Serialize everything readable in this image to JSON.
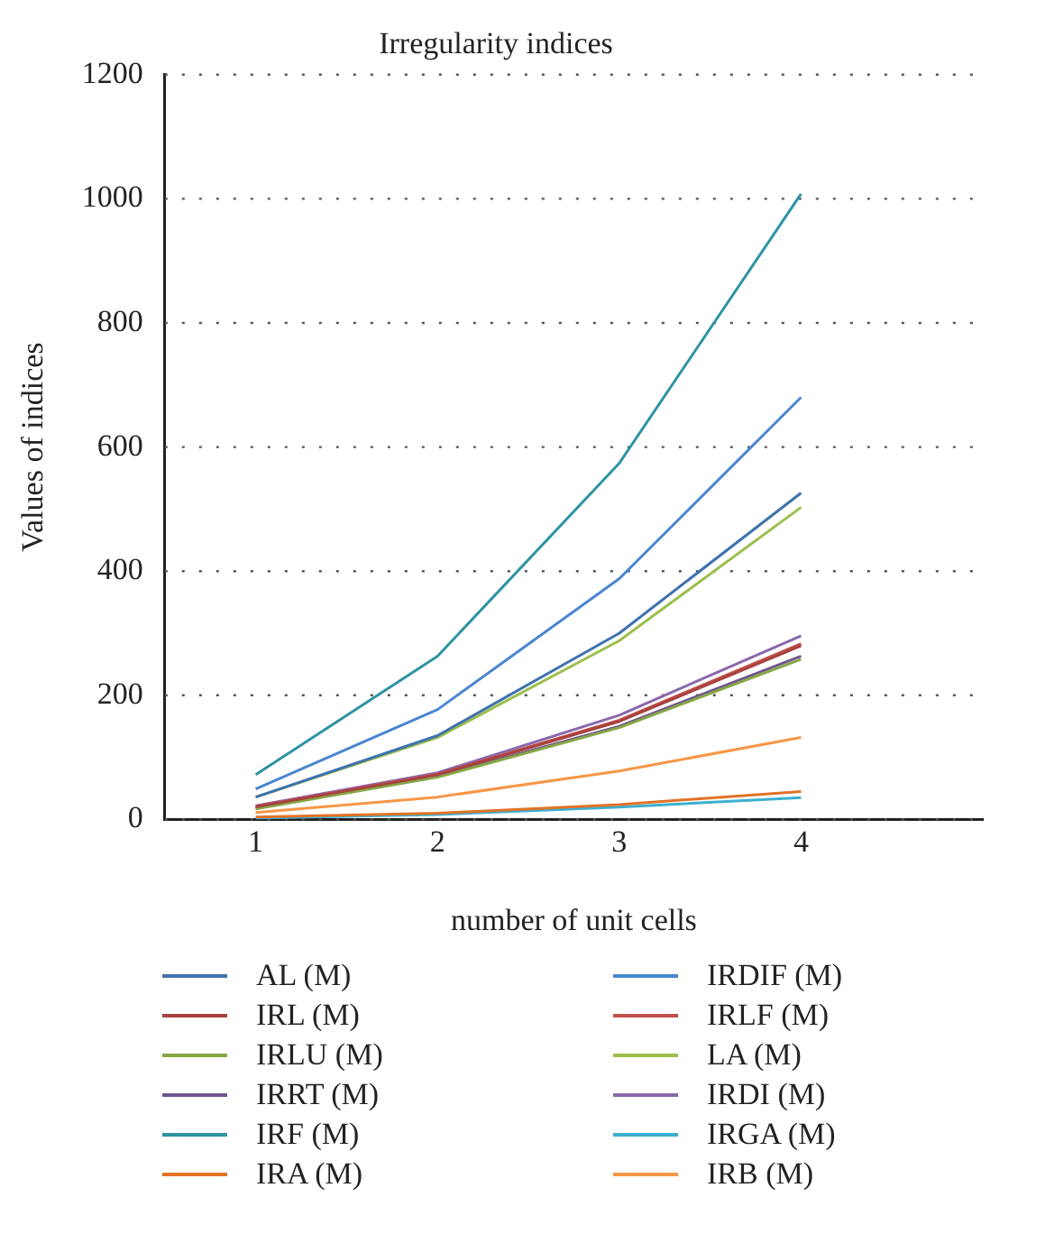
{
  "chart_data": {
    "type": "line",
    "title": "Irregularity indices",
    "xlabel": "number of unit cells",
    "ylabel": "Values of indices",
    "x": [
      1,
      2,
      3,
      4
    ],
    "xlim": [
      0.5,
      5
    ],
    "xticks": [
      1,
      2,
      3,
      4
    ],
    "ylim": [
      0,
      1200
    ],
    "yticks": [
      0,
      200,
      400,
      600,
      800,
      1000,
      1200
    ],
    "grid": "y",
    "legend": "bottom",
    "marker": "none",
    "line_style": "solid",
    "series": [
      {
        "name": "AL (M)",
        "color": "#3f72af",
        "values": [
          36,
          135,
          300,
          526
        ]
      },
      {
        "name": "IRL (M)",
        "color": "#a8423f",
        "values": [
          20,
          72,
          158,
          280
        ]
      },
      {
        "name": "IRLU (M)",
        "color": "#86a844",
        "values": [
          17,
          68,
          148,
          258
        ]
      },
      {
        "name": "IRRT (M)",
        "color": "#6f5591",
        "values": [
          18,
          70,
          150,
          263
        ]
      },
      {
        "name": "IRF (M)",
        "color": "#2e93a3",
        "values": [
          72,
          263,
          574,
          1008
        ]
      },
      {
        "name": "IRA (M)",
        "color": "#e37226",
        "values": [
          4,
          10,
          24,
          45
        ]
      },
      {
        "name": "IRDIF (M)",
        "color": "#4a86d0",
        "values": [
          49,
          177,
          388,
          680
        ]
      },
      {
        "name": "IRLF (M)",
        "color": "#c0504d",
        "values": [
          21,
          73,
          160,
          283
        ]
      },
      {
        "name": "LA (M)",
        "color": "#9cbf4c",
        "values": [
          36,
          132,
          288,
          503
        ]
      },
      {
        "name": "IRDI (M)",
        "color": "#8a68ad",
        "values": [
          22,
          75,
          168,
          296
        ]
      },
      {
        "name": "IRGA (M)",
        "color": "#3bb0d0",
        "values": [
          2,
          8,
          20,
          35
        ]
      },
      {
        "name": "IRB (M)",
        "color": "#f79646",
        "values": [
          11,
          36,
          78,
          132
        ]
      }
    ]
  }
}
